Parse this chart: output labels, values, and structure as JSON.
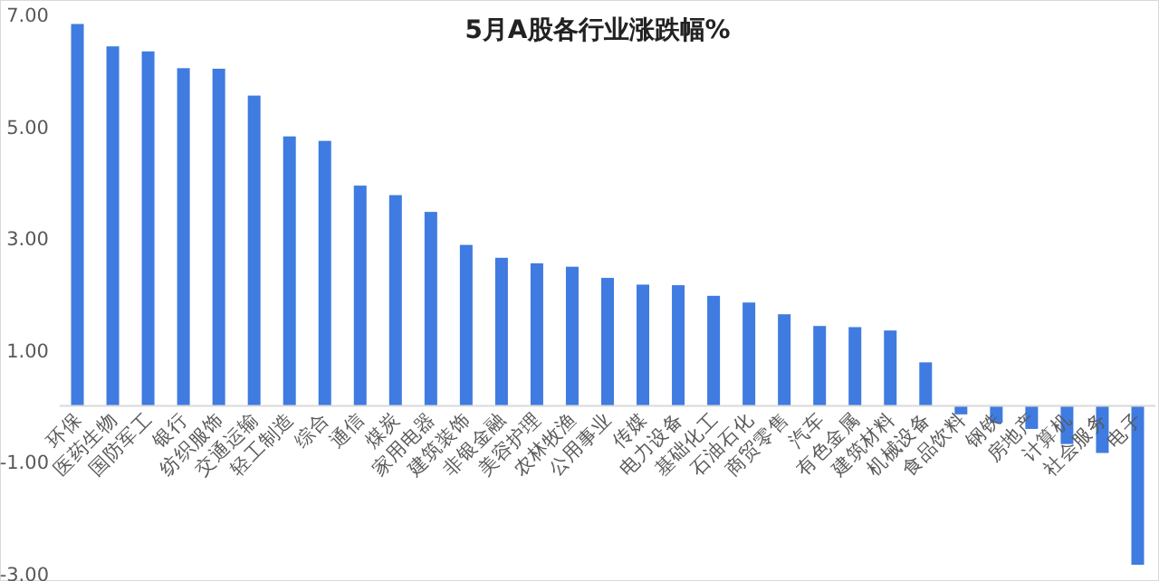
{
  "chart_data": {
    "type": "bar",
    "title": "5月A股各行业涨跌幅%",
    "categories": [
      "环保",
      "医药生物",
      "国防军工",
      "银行",
      "纺织服饰",
      "交通运输",
      "轻工制造",
      "综合",
      "通信",
      "煤炭",
      "家用电器",
      "建筑装饰",
      "非银金融",
      "美容护理",
      "农林牧渔",
      "公用事业",
      "传媒",
      "电力设备",
      "基础化工",
      "石油石化",
      "商贸零售",
      "汽车",
      "有色金属",
      "建筑材料",
      "机械设备",
      "食品饮料",
      "钢铁",
      "房地产",
      "计算机",
      "社会服务",
      "电子"
    ],
    "values": [
      6.83,
      6.43,
      6.34,
      6.04,
      6.03,
      5.55,
      4.82,
      4.74,
      3.94,
      3.77,
      3.47,
      2.88,
      2.65,
      2.55,
      2.49,
      2.29,
      2.17,
      2.16,
      1.97,
      1.85,
      1.64,
      1.43,
      1.41,
      1.35,
      0.78,
      -0.15,
      -0.3,
      -0.41,
      -0.68,
      -0.84,
      -2.84
    ],
    "color": "#3f7be0",
    "ylim": [
      -3,
      7
    ],
    "yticks": [
      {
        "value": 7,
        "label": "7.00"
      },
      {
        "value": 5,
        "label": "5.00"
      },
      {
        "value": 3,
        "label": "3.00"
      },
      {
        "value": 1,
        "label": "1.00"
      },
      {
        "value": -1,
        "label": "-1.00"
      },
      {
        "value": -3,
        "label": "-3.00"
      }
    ],
    "grid": false,
    "legend": false
  }
}
